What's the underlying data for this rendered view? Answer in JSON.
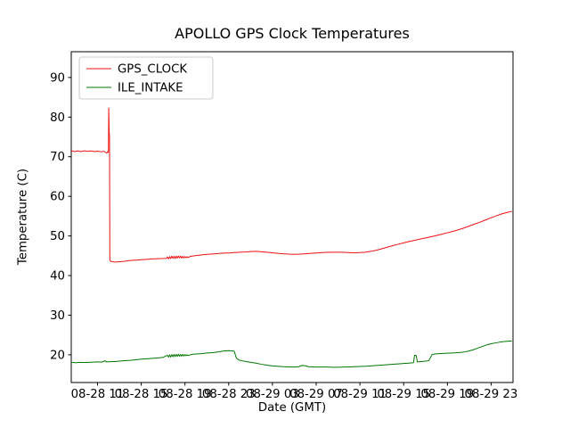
{
  "title": "APOLLO GPS Clock Temperatures",
  "chart_data": {
    "type": "line",
    "title": "APOLLO GPS Clock Temperatures",
    "xlabel": "Date (GMT)",
    "ylabel": "Temperature (C)",
    "x_unit": "hours since 08-28 00:00 GMT",
    "xlim": [
      8.6,
      49.0
    ],
    "ylim": [
      13.0,
      96.5
    ],
    "grid": false,
    "legend_position": "upper-left",
    "xticks": {
      "values": [
        11,
        15,
        19,
        23,
        27,
        31,
        35,
        39,
        43,
        47
      ],
      "labels": [
        "08-28 11",
        "08-28 15",
        "08-28 19",
        "08-28 23",
        "08-29 03",
        "08-29 07",
        "08-29 11",
        "08-29 15",
        "08-29 19",
        "08-29 23"
      ]
    },
    "yticks": {
      "values": [
        20,
        30,
        40,
        50,
        60,
        70,
        80,
        90
      ],
      "labels": [
        "20",
        "30",
        "40",
        "50",
        "60",
        "70",
        "80",
        "90"
      ]
    },
    "series": [
      {
        "name": "GPS_CLOCK",
        "color": "#ee1111",
        "points": [
          [
            8.6,
            71.5
          ],
          [
            8.9,
            71.3
          ],
          [
            9.2,
            71.45
          ],
          [
            9.5,
            71.3
          ],
          [
            9.8,
            71.5
          ],
          [
            10.1,
            71.35
          ],
          [
            10.4,
            71.45
          ],
          [
            10.7,
            71.3
          ],
          [
            11.0,
            71.4
          ],
          [
            11.3,
            71.25
          ],
          [
            11.6,
            71.35
          ],
          [
            11.85,
            70.9
          ],
          [
            11.95,
            71.3
          ],
          [
            12.0,
            71.1
          ],
          [
            12.03,
            82.3
          ],
          [
            12.07,
            76.0
          ],
          [
            12.1,
            75.3
          ],
          [
            12.13,
            44.0
          ],
          [
            12.2,
            43.6
          ],
          [
            12.4,
            43.5
          ],
          [
            12.6,
            43.4
          ],
          [
            12.8,
            43.45
          ],
          [
            13.0,
            43.5
          ],
          [
            13.5,
            43.6
          ],
          [
            14.0,
            43.8
          ],
          [
            14.5,
            43.9
          ],
          [
            15.0,
            44.0
          ],
          [
            15.5,
            44.1
          ],
          [
            16.0,
            44.2
          ],
          [
            16.5,
            44.25
          ],
          [
            17.0,
            44.3
          ],
          [
            17.3,
            44.35
          ],
          [
            17.4,
            44.7
          ],
          [
            17.5,
            44.2
          ],
          [
            17.6,
            44.8
          ],
          [
            17.7,
            44.3
          ],
          [
            17.8,
            44.9
          ],
          [
            17.9,
            44.35
          ],
          [
            18.0,
            44.85
          ],
          [
            18.1,
            44.3
          ],
          [
            18.2,
            44.9
          ],
          [
            18.3,
            44.4
          ],
          [
            18.4,
            44.95
          ],
          [
            18.5,
            44.45
          ],
          [
            18.6,
            44.9
          ],
          [
            18.7,
            44.4
          ],
          [
            18.8,
            44.85
          ],
          [
            18.9,
            44.45
          ],
          [
            19.0,
            44.8
          ],
          [
            19.1,
            44.5
          ],
          [
            19.2,
            44.75
          ],
          [
            19.3,
            44.55
          ],
          [
            19.5,
            44.85
          ],
          [
            20.0,
            45.05
          ],
          [
            20.5,
            45.2
          ],
          [
            21.0,
            45.35
          ],
          [
            21.5,
            45.45
          ],
          [
            22.0,
            45.55
          ],
          [
            22.5,
            45.65
          ],
          [
            23.0,
            45.7
          ],
          [
            23.5,
            45.8
          ],
          [
            24.0,
            45.9
          ],
          [
            24.5,
            45.95
          ],
          [
            25.0,
            46.05
          ],
          [
            25.5,
            46.1
          ],
          [
            26.0,
            46.0
          ],
          [
            26.5,
            45.9
          ],
          [
            27.0,
            45.75
          ],
          [
            27.5,
            45.6
          ],
          [
            28.0,
            45.5
          ],
          [
            28.5,
            45.4
          ],
          [
            29.0,
            45.35
          ],
          [
            29.5,
            45.4
          ],
          [
            30.0,
            45.5
          ],
          [
            30.5,
            45.6
          ],
          [
            31.0,
            45.7
          ],
          [
            31.5,
            45.8
          ],
          [
            32.0,
            45.85
          ],
          [
            32.5,
            45.9
          ],
          [
            33.0,
            45.9
          ],
          [
            33.5,
            45.85
          ],
          [
            34.0,
            45.8
          ],
          [
            34.5,
            45.75
          ],
          [
            35.0,
            45.8
          ],
          [
            35.5,
            45.9
          ],
          [
            36.0,
            46.1
          ],
          [
            36.5,
            46.4
          ],
          [
            37.0,
            46.75
          ],
          [
            37.5,
            47.15
          ],
          [
            38.0,
            47.55
          ],
          [
            38.5,
            47.9
          ],
          [
            39.0,
            48.25
          ],
          [
            39.5,
            48.6
          ],
          [
            40.0,
            48.9
          ],
          [
            40.5,
            49.2
          ],
          [
            41.0,
            49.5
          ],
          [
            41.5,
            49.8
          ],
          [
            42.0,
            50.1
          ],
          [
            42.5,
            50.45
          ],
          [
            43.0,
            50.8
          ],
          [
            43.5,
            51.15
          ],
          [
            44.0,
            51.55
          ],
          [
            44.5,
            52.0
          ],
          [
            45.0,
            52.5
          ],
          [
            45.5,
            53.0
          ],
          [
            46.0,
            53.5
          ],
          [
            46.5,
            54.05
          ],
          [
            47.0,
            54.6
          ],
          [
            47.5,
            55.1
          ],
          [
            48.0,
            55.6
          ],
          [
            48.5,
            55.95
          ],
          [
            48.9,
            56.2
          ]
        ]
      },
      {
        "name": "ILE_INTAKE",
        "color": "#007700",
        "points": [
          [
            8.6,
            18.1
          ],
          [
            9.0,
            18.0
          ],
          [
            9.4,
            18.1
          ],
          [
            9.8,
            18.05
          ],
          [
            10.2,
            18.1
          ],
          [
            10.6,
            18.15
          ],
          [
            11.0,
            18.2
          ],
          [
            11.4,
            18.15
          ],
          [
            11.7,
            18.5
          ],
          [
            11.8,
            18.2
          ],
          [
            12.2,
            18.25
          ],
          [
            12.6,
            18.3
          ],
          [
            13.0,
            18.4
          ],
          [
            13.5,
            18.5
          ],
          [
            14.0,
            18.6
          ],
          [
            14.5,
            18.75
          ],
          [
            15.0,
            18.9
          ],
          [
            15.5,
            19.0
          ],
          [
            16.0,
            19.1
          ],
          [
            16.5,
            19.2
          ],
          [
            17.0,
            19.35
          ],
          [
            17.4,
            19.9
          ],
          [
            17.5,
            19.4
          ],
          [
            17.6,
            20.0
          ],
          [
            17.7,
            19.45
          ],
          [
            17.8,
            20.05
          ],
          [
            17.9,
            19.5
          ],
          [
            18.0,
            20.1
          ],
          [
            18.1,
            19.55
          ],
          [
            18.2,
            20.1
          ],
          [
            18.3,
            19.6
          ],
          [
            18.4,
            20.15
          ],
          [
            18.5,
            19.6
          ],
          [
            18.6,
            20.1
          ],
          [
            18.7,
            19.65
          ],
          [
            18.8,
            20.1
          ],
          [
            18.9,
            19.7
          ],
          [
            19.0,
            20.05
          ],
          [
            19.1,
            19.75
          ],
          [
            19.2,
            20.0
          ],
          [
            19.3,
            19.8
          ],
          [
            19.6,
            20.1
          ],
          [
            20.0,
            20.2
          ],
          [
            20.5,
            20.3
          ],
          [
            21.0,
            20.45
          ],
          [
            21.5,
            20.55
          ],
          [
            22.0,
            20.7
          ],
          [
            22.3,
            20.85
          ],
          [
            22.6,
            21.0
          ],
          [
            23.0,
            21.05
          ],
          [
            23.3,
            21.0
          ],
          [
            23.5,
            20.9
          ],
          [
            23.7,
            19.2
          ],
          [
            23.9,
            18.7
          ],
          [
            24.2,
            18.5
          ],
          [
            24.6,
            18.3
          ],
          [
            25.0,
            18.1
          ],
          [
            25.5,
            17.9
          ],
          [
            26.0,
            17.6
          ],
          [
            26.5,
            17.4
          ],
          [
            27.0,
            17.2
          ],
          [
            27.5,
            17.1
          ],
          [
            28.0,
            17.0
          ],
          [
            28.5,
            16.95
          ],
          [
            29.0,
            16.9
          ],
          [
            29.4,
            17.0
          ],
          [
            29.7,
            17.3
          ],
          [
            30.0,
            17.25
          ],
          [
            30.3,
            17.0
          ],
          [
            30.7,
            16.95
          ],
          [
            31.0,
            16.9
          ],
          [
            31.5,
            16.9
          ],
          [
            32.0,
            16.9
          ],
          [
            32.5,
            16.85
          ],
          [
            33.0,
            16.85
          ],
          [
            33.5,
            16.9
          ],
          [
            34.0,
            16.95
          ],
          [
            34.5,
            17.0
          ],
          [
            35.0,
            17.05
          ],
          [
            35.5,
            17.1
          ],
          [
            36.0,
            17.2
          ],
          [
            36.5,
            17.3
          ],
          [
            37.0,
            17.4
          ],
          [
            37.5,
            17.5
          ],
          [
            38.0,
            17.6
          ],
          [
            38.5,
            17.7
          ],
          [
            39.0,
            17.8
          ],
          [
            39.5,
            17.9
          ],
          [
            39.9,
            18.0
          ],
          [
            40.0,
            19.9
          ],
          [
            40.15,
            19.8
          ],
          [
            40.25,
            18.2
          ],
          [
            40.6,
            18.3
          ],
          [
            41.0,
            18.4
          ],
          [
            41.3,
            18.5
          ],
          [
            41.6,
            20.1
          ],
          [
            41.9,
            20.2
          ],
          [
            42.2,
            20.3
          ],
          [
            42.6,
            20.35
          ],
          [
            43.0,
            20.4
          ],
          [
            43.4,
            20.45
          ],
          [
            43.8,
            20.5
          ],
          [
            44.2,
            20.6
          ],
          [
            44.6,
            20.75
          ],
          [
            45.0,
            21.0
          ],
          [
            45.4,
            21.3
          ],
          [
            45.8,
            21.7
          ],
          [
            46.2,
            22.1
          ],
          [
            46.6,
            22.5
          ],
          [
            47.0,
            22.8
          ],
          [
            47.4,
            23.0
          ],
          [
            47.8,
            23.2
          ],
          [
            48.2,
            23.35
          ],
          [
            48.6,
            23.45
          ],
          [
            48.9,
            23.5
          ]
        ]
      }
    ]
  }
}
